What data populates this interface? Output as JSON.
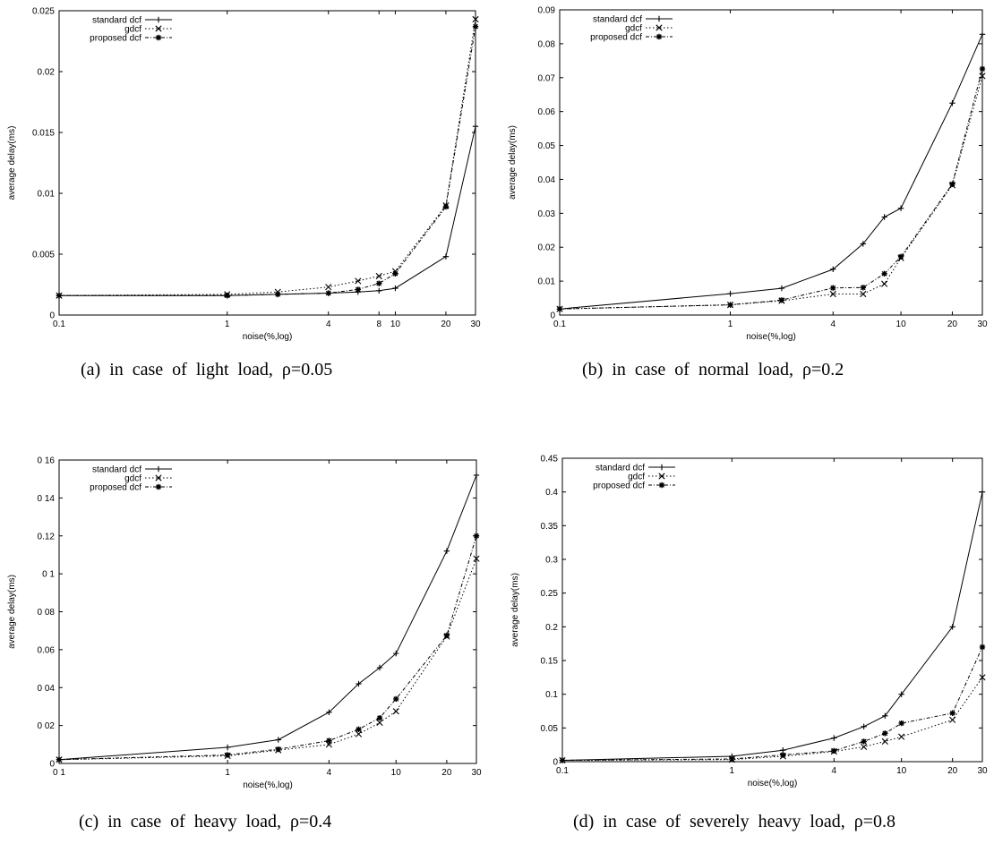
{
  "captions": {
    "a": "(a)  in  case  of  light  load,  ρ=0.05",
    "b": "(b)  in  case  of  normal  load,  ρ=0.2",
    "c": "(c)  in  case  of  heavy  load,  ρ=0.4",
    "d": "(d)  in  case  of  severely  heavy  load,  ρ=0.8"
  },
  "chart_data": [
    {
      "type": "line",
      "xlabel": "noise(%,log)",
      "ylabel": "average delay(ms)",
      "xscale": "log",
      "xlim": [
        0.1,
        30
      ],
      "ylim": [
        0,
        0.025
      ],
      "xticks": [
        0.1,
        1,
        4,
        8,
        10,
        20,
        30
      ],
      "xtick_labels": [
        "0.1",
        "1",
        "4",
        "8",
        "10",
        "20",
        "30"
      ],
      "yticks": [
        0,
        0.005,
        0.01,
        0.015,
        0.02,
        0.025
      ],
      "ytick_labels": [
        "0",
        "0.005",
        "0.01",
        "0.015",
        "0.02",
        "0.025"
      ],
      "legend_position": "top-left",
      "series": [
        {
          "name": "standard dcf",
          "style": "solid",
          "marker": "+",
          "x": [
            0.1,
            1,
            2,
            4,
            6,
            8,
            10,
            20,
            30
          ],
          "y": [
            0.0016,
            0.0016,
            0.0017,
            0.0018,
            0.0019,
            0.002,
            0.0022,
            0.0048,
            0.0155
          ]
        },
        {
          "name": "gdcf",
          "style": "dotted",
          "marker": "x",
          "x": [
            0.1,
            1,
            2,
            4,
            6,
            8,
            10,
            20,
            30
          ],
          "y": [
            0.0016,
            0.0017,
            0.0019,
            0.0023,
            0.0028,
            0.0032,
            0.0036,
            0.009,
            0.0243
          ]
        },
        {
          "name": "proposed dcf",
          "style": "dash-dot",
          "marker": "*",
          "x": [
            0.1,
            1,
            2,
            4,
            6,
            8,
            10,
            20,
            30
          ],
          "y": [
            0.0016,
            0.0016,
            0.0017,
            0.0018,
            0.0021,
            0.0026,
            0.0034,
            0.0089,
            0.0237
          ]
        }
      ]
    },
    {
      "type": "line",
      "xlabel": "noise(%,log)",
      "ylabel": "average delay(ms)",
      "xscale": "log",
      "xlim": [
        0.1,
        30
      ],
      "ylim": [
        0,
        0.09
      ],
      "xticks": [
        0.1,
        1,
        4,
        10,
        20,
        30
      ],
      "xtick_labels": [
        "0.1",
        "1",
        "4",
        "10",
        "20",
        "30"
      ],
      "yticks": [
        0,
        0.01,
        0.02,
        0.03,
        0.04,
        0.05,
        0.06,
        0.07,
        0.08,
        0.09
      ],
      "ytick_labels": [
        "0",
        "0.01",
        "0.02",
        "0.03",
        "0.04",
        "0.05",
        "0.06",
        "0.07",
        "0.08",
        "0.09"
      ],
      "legend_position": "top-left",
      "series": [
        {
          "name": "standard dcf",
          "style": "solid",
          "marker": "+",
          "x": [
            0.1,
            1,
            2,
            4,
            6,
            8,
            10,
            20,
            30
          ],
          "y": [
            0.0018,
            0.0063,
            0.0079,
            0.0135,
            0.021,
            0.0289,
            0.0315,
            0.0625,
            0.0828
          ]
        },
        {
          "name": "gdcf",
          "style": "dotted",
          "marker": "x",
          "x": [
            0.1,
            1,
            2,
            4,
            6,
            8,
            10,
            20,
            30
          ],
          "y": [
            0.0018,
            0.003,
            0.0042,
            0.0062,
            0.0062,
            0.0092,
            0.0168,
            0.0383,
            0.0705
          ]
        },
        {
          "name": "proposed dcf",
          "style": "dash-dot",
          "marker": "*",
          "x": [
            0.1,
            1,
            2,
            4,
            6,
            8,
            10,
            20,
            30
          ],
          "y": [
            0.0018,
            0.003,
            0.0044,
            0.008,
            0.0081,
            0.0122,
            0.0172,
            0.0386,
            0.0726
          ]
        }
      ]
    },
    {
      "type": "line",
      "xlabel": "noise(%,log)",
      "ylabel": "average delay(ms)",
      "xscale": "log",
      "xlim": [
        0.1,
        30
      ],
      "ylim": [
        0,
        0.16
      ],
      "xticks": [
        0.1,
        1,
        4,
        10,
        20,
        30
      ],
      "xtick_labels": [
        "0 1",
        "1",
        "4",
        "10",
        "20",
        "30"
      ],
      "yticks": [
        0,
        0.02,
        0.04,
        0.06,
        0.08,
        0.1,
        0.12,
        0.14,
        0.16
      ],
      "ytick_labels": [
        "0",
        "0 02",
        "0 04",
        "0.06",
        "0 08",
        "0 1",
        "0.12",
        "0 14",
        "0 16"
      ],
      "legend_position": "top-left",
      "series": [
        {
          "name": "standard dcf",
          "style": "solid",
          "marker": "+",
          "x": [
            0.1,
            1,
            2,
            4,
            6,
            8,
            10,
            20,
            30
          ],
          "y": [
            0.002,
            0.0085,
            0.0125,
            0.027,
            0.042,
            0.0505,
            0.058,
            0.112,
            0.152
          ]
        },
        {
          "name": "gdcf",
          "style": "dotted",
          "marker": "x",
          "x": [
            0.1,
            1,
            2,
            4,
            6,
            8,
            10,
            20,
            30
          ],
          "y": [
            0.002,
            0.004,
            0.007,
            0.01,
            0.0155,
            0.0215,
            0.0275,
            0.067,
            0.108
          ]
        },
        {
          "name": "proposed dcf",
          "style": "dash-dot",
          "marker": "*",
          "x": [
            0.1,
            1,
            2,
            4,
            6,
            8,
            10,
            20,
            30
          ],
          "y": [
            0.002,
            0.0045,
            0.0075,
            0.012,
            0.018,
            0.024,
            0.034,
            0.0675,
            0.12
          ]
        }
      ]
    },
    {
      "type": "line",
      "xlabel": "noise(%,log)",
      "ylabel": "average delay(ms)",
      "xscale": "log",
      "xlim": [
        0.1,
        30
      ],
      "ylim": [
        0,
        0.45
      ],
      "xticks": [
        0.1,
        1,
        4,
        10,
        20,
        30
      ],
      "xtick_labels": [
        "0.1",
        "1",
        "4",
        "10",
        "20",
        "30"
      ],
      "yticks": [
        0,
        0.05,
        0.1,
        0.15,
        0.2,
        0.25,
        0.3,
        0.35,
        0.4,
        0.45
      ],
      "ytick_labels": [
        "0",
        "0.05",
        "0.1",
        "0.15",
        "0.2",
        "0.25",
        "0.3",
        "0.35",
        "0.4",
        "0.45"
      ],
      "legend_position": "top-left",
      "series": [
        {
          "name": "standard dcf",
          "style": "solid",
          "marker": "+",
          "x": [
            0.1,
            1,
            2,
            4,
            6,
            8,
            10,
            20,
            30
          ],
          "y": [
            0.002,
            0.008,
            0.017,
            0.035,
            0.052,
            0.068,
            0.1,
            0.2,
            0.4
          ]
        },
        {
          "name": "gdcf",
          "style": "dotted",
          "marker": "x",
          "x": [
            0.1,
            1,
            2,
            4,
            6,
            8,
            10,
            20,
            30
          ],
          "y": [
            0.002,
            0.003,
            0.008,
            0.015,
            0.022,
            0.03,
            0.037,
            0.062,
            0.125
          ]
        },
        {
          "name": "proposed dcf",
          "style": "dash-dot",
          "marker": "*",
          "x": [
            0.1,
            1,
            2,
            4,
            6,
            8,
            10,
            20,
            30
          ],
          "y": [
            0.002,
            0.004,
            0.01,
            0.016,
            0.03,
            0.042,
            0.057,
            0.072,
            0.17
          ]
        }
      ]
    }
  ]
}
